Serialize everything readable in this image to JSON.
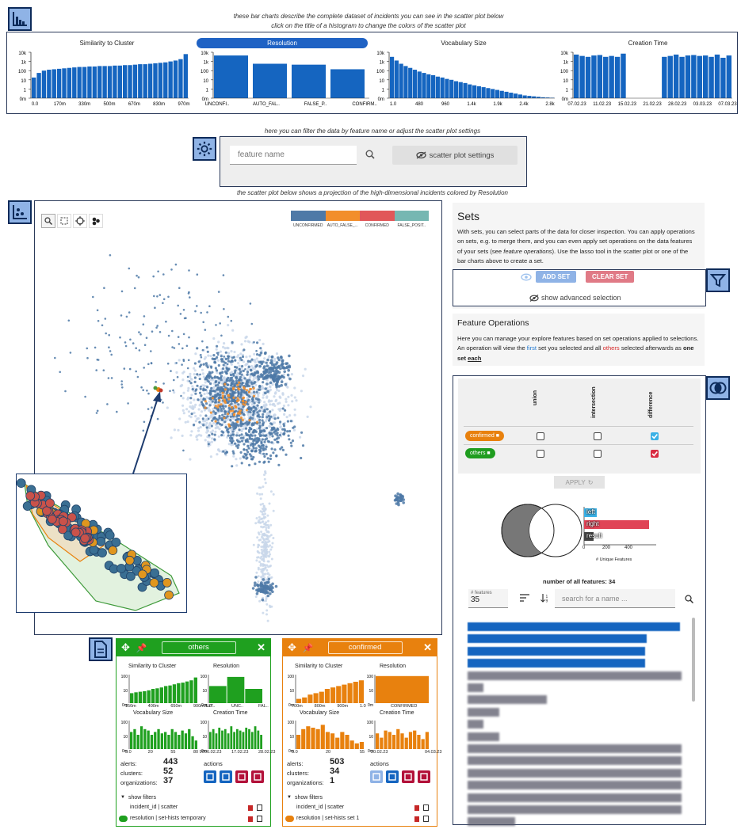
{
  "captions": {
    "top1": "these bar charts describe the complete dataset of incidents you can see in the scatter plot below",
    "top2": "click on the title of a histogram to change the colors of the scatter plot",
    "filter": "here you can filter the data by feature name or adjust the scatter plot settings",
    "scatter": "the scatter plot below shows a projection of the high-dimensional incidents colored by Resolution"
  },
  "histograms": [
    {
      "title": "Similarity to Cluster",
      "yticks": [
        "10k",
        "1k",
        "100",
        "10",
        "1",
        "0m"
      ],
      "xticks": [
        "0.0",
        "170m",
        "330m",
        "500m",
        "670m",
        "830m",
        "970m"
      ]
    },
    {
      "title": "Resolution",
      "yticks": [
        "10k",
        "1k",
        "100",
        "10",
        "1",
        "0m"
      ],
      "xticks": [
        "UNCONFI..",
        "AUTO_FAL..",
        "FALSE_P..",
        "CONFIRM.."
      ]
    },
    {
      "title": "Vocabulary Size",
      "yticks": [
        "10k",
        "1k",
        "100",
        "10",
        "1",
        "0m"
      ],
      "xticks": [
        "1.0",
        "480",
        "960",
        "1.4k",
        "1.9k",
        "2.4k",
        "2.8k"
      ]
    },
    {
      "title": "Creation Time",
      "yticks": [
        "10k",
        "1k",
        "100",
        "10",
        "1",
        "0m"
      ],
      "xticks": [
        "07.02.23",
        "11.02.23",
        "15.02.23",
        "21.02.23",
        "28.02.23",
        "03.03.23",
        "07.03.23"
      ]
    }
  ],
  "filter": {
    "placeholder": "feature name",
    "settings_label": "scatter plot settings"
  },
  "legend": [
    {
      "label": "UNCONFIRMED",
      "color": "#4e79a7"
    },
    {
      "label": "AUTO_FALSE_...",
      "color": "#f28e2b"
    },
    {
      "label": "CONFIRMED",
      "color": "#e15759"
    },
    {
      "label": "FALSE_POSIT..",
      "color": "#76b7b2"
    }
  ],
  "sets": {
    "title": "Sets",
    "desc_a": "With sets, you can select parts of the data for closer inspection. You can apply operations on sets, e.g. to merge them, and you can even apply set operations on the data features of your sets (see ",
    "desc_em": "feature operations",
    "desc_b": "). Use the lasso tool in the scatter plot or one of the bar charts above to create a set.",
    "add": "ADD SET",
    "clear": "CLEAR SET",
    "advanced": "show advanced selection"
  },
  "featops": {
    "title": "Feature Operations",
    "desc_a": "Here you can manage your explore features based on set operations applied to selections. An operation will view the ",
    "first": "first",
    "desc_b": " set you selected and all ",
    "others": "others",
    "desc_c": " selected afterwards as ",
    "one": "one set",
    "each": "each",
    "cols": [
      "union",
      "intersection",
      "difference"
    ],
    "rows": [
      {
        "label": "confirmed",
        "color": "#e8810e"
      },
      {
        "label": "others",
        "color": "#1f9d1f"
      }
    ],
    "apply": "APPLY",
    "venn_labels": [
      "left",
      "right",
      "result"
    ],
    "venn_axis": [
      "0",
      "200",
      "400"
    ],
    "venn_xlabel": "# Unique Features",
    "count": "number of all features: 34",
    "nfeat_label": "# features",
    "nfeat_value": "35",
    "search_ph": "search for a name ..."
  },
  "cards": [
    {
      "name": "others",
      "color": "#1fa01f",
      "alerts": "443",
      "clusters": "52",
      "orgs": "37",
      "h1": "Similarity to Cluster",
      "h2": "Resolution",
      "h3": "Vocabulary Size",
      "h4": "Creation Time",
      "h1x": [
        "150m",
        "400m",
        "650m",
        "900m 1.0"
      ],
      "h2x": [
        "AUT..",
        "UNC..",
        "FAL.."
      ],
      "h3x": [
        "5.0",
        "20",
        "55",
        "80 90"
      ],
      "h4x": [
        "06.02.23",
        "17.02.23",
        "28.02.23"
      ],
      "filter1": "incident_id | scatter",
      "filter2": "resolution | set-hists temporary"
    },
    {
      "name": "confirmed",
      "color": "#e8810e",
      "alerts": "503",
      "clusters": "34",
      "orgs": "1",
      "h1": "Similarity to Cluster",
      "h2": "Resolution",
      "h3": "Vocabulary Size",
      "h4": "Creation Time",
      "h1x": [
        "700m",
        "800m",
        "900m",
        "1.0"
      ],
      "h2x": [
        "CONFIRMED"
      ],
      "h3x": [
        "5.0",
        "20",
        "55"
      ],
      "h4x": [
        "20.02.23",
        "04.03.23"
      ],
      "filter1": "incident_id | scatter",
      "filter2": "resolution | set-hists set 1"
    }
  ],
  "card_labels": {
    "alerts": "alerts:",
    "clusters": "clusters:",
    "orgs": "organizations:",
    "actions": "actions",
    "show_filters": "show filters",
    "yt": [
      "100",
      "10",
      "0m"
    ]
  }
}
